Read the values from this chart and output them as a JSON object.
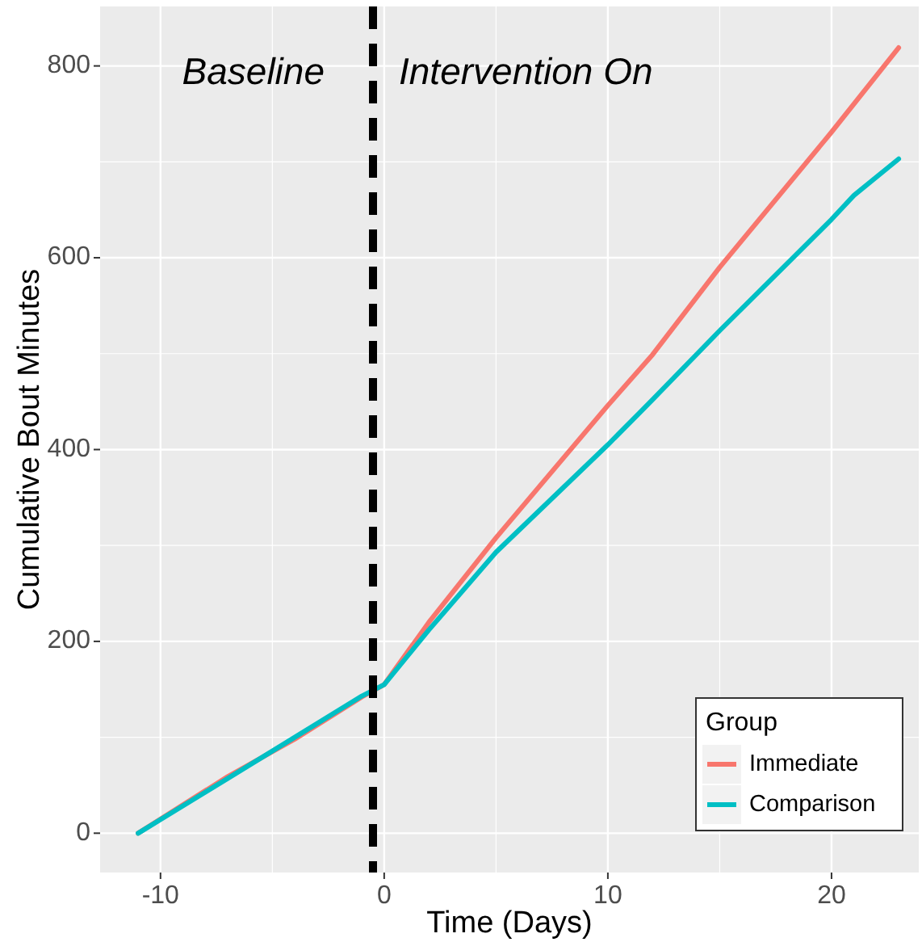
{
  "chart_data": {
    "type": "line",
    "xlabel": "Time (Days)",
    "ylabel": "Cumulative Bout Minutes",
    "legend_title": "Group",
    "legend": "bottom right",
    "grid": true,
    "line_style": "solid",
    "xlim": [
      -12.7,
      23.9
    ],
    "xticks": [
      -10,
      0,
      10,
      20
    ],
    "ylim": [
      -41,
      862
    ],
    "yticks": [
      0,
      200,
      400,
      600,
      800
    ],
    "series": [
      {
        "name": "Immediate",
        "color": "#f8766d",
        "x": [
          -11,
          -7,
          -4,
          -1,
          0,
          2,
          5,
          10,
          12,
          15,
          20,
          23
        ],
        "values": [
          0,
          59,
          98,
          142,
          155,
          220,
          308,
          446,
          499,
          590,
          731,
          819
        ]
      },
      {
        "name": "Comparison",
        "color": "#00bfc4",
        "x": [
          -11,
          -7,
          -4,
          -1,
          0,
          2,
          5,
          10,
          12,
          15,
          20,
          21,
          23
        ],
        "values": [
          0,
          57,
          100,
          143,
          155,
          212,
          293,
          405,
          452,
          524,
          640,
          665,
          703
        ]
      }
    ],
    "ref_lines": [
      {
        "axis": "x",
        "value": -0.5,
        "color": "#000000",
        "line_style": "dashed"
      }
    ],
    "annotations": [
      "Baseline",
      "Intervention On"
    ]
  }
}
